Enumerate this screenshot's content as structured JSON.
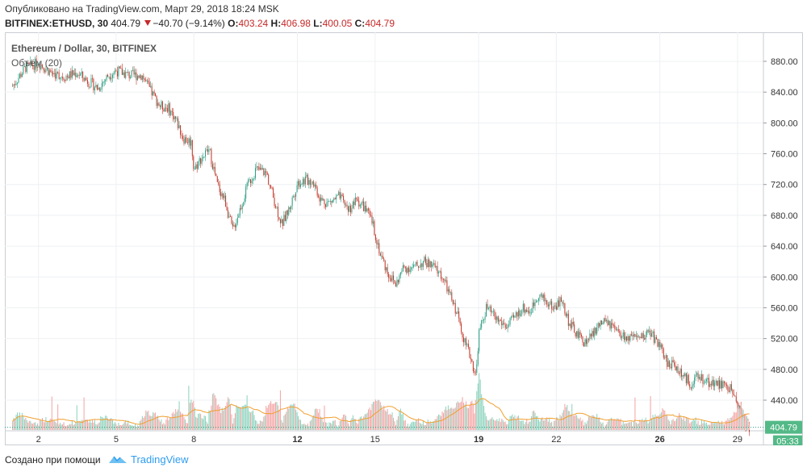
{
  "header": {
    "published": "Опубликовано на TradingView.com, Март 29, 2018 18:24 MSK",
    "symbol": "BITFINEX:ETHUSD, 30",
    "last": "404.79",
    "change": "−40.70 (−9.14%)",
    "o_label": "O:",
    "o_value": "403.24",
    "h_label": "H:",
    "h_value": "406.98",
    "l_label": "L:",
    "l_value": "400.05",
    "c_label": "C:",
    "c_value": "404.79"
  },
  "legend": {
    "title": "Ethereum / Dollar, 30, BITFINEX",
    "volume": "Объём (20)"
  },
  "footer": {
    "created_with": "Создано при помощи",
    "brand": "TradingView"
  },
  "colors": {
    "up": "#2e9e82",
    "down": "#c0392b",
    "up_volume": "#8fd3be",
    "down_volume": "#f3a6a6",
    "volume_ma": "#f0a030",
    "price_label_bg": "#53b987",
    "grid": "#eef0f3",
    "axis_text": "#333333"
  },
  "chart_data": {
    "type": "candlestick",
    "title": "Ethereum / Dollar, 30, BITFINEX",
    "ylim": [
      400,
      896
    ],
    "y_ticks": [
      "880.00",
      "840.00",
      "800.00",
      "760.00",
      "720.00",
      "680.00",
      "640.00",
      "600.00",
      "560.00",
      "520.00",
      "480.00",
      "440.00"
    ],
    "x_ticks": [
      "2",
      "5",
      "8",
      "12",
      "15",
      "19",
      "22",
      "26",
      "29"
    ],
    "last_price": "404.79",
    "countdown": "05:33",
    "price_path": [
      {
        "date": "1",
        "close": 848
      },
      {
        "date": "1.5",
        "close": 872
      },
      {
        "date": "2",
        "close": 878
      },
      {
        "date": "2.5",
        "close": 865
      },
      {
        "date": "3",
        "close": 860
      },
      {
        "date": "3.5",
        "close": 865
      },
      {
        "date": "4",
        "close": 852
      },
      {
        "date": "4.3",
        "close": 845
      },
      {
        "date": "4.7",
        "close": 862
      },
      {
        "date": "5",
        "close": 868
      },
      {
        "date": "5.5",
        "close": 862
      },
      {
        "date": "6",
        "close": 862
      },
      {
        "date": "6.3",
        "close": 843
      },
      {
        "date": "6.7",
        "close": 822
      },
      {
        "date": "7",
        "close": 820
      },
      {
        "date": "7.3",
        "close": 805
      },
      {
        "date": "7.6",
        "close": 780
      },
      {
        "date": "7.9",
        "close": 775
      },
      {
        "date": "8",
        "close": 740
      },
      {
        "date": "8.3",
        "close": 755
      },
      {
        "date": "8.6",
        "close": 765
      },
      {
        "date": "8.9",
        "close": 720
      },
      {
        "date": "9.2",
        "close": 700
      },
      {
        "date": "9.5",
        "close": 660
      },
      {
        "date": "9.8",
        "close": 690
      },
      {
        "date": "10.1",
        "close": 720
      },
      {
        "date": "10.4",
        "close": 740
      },
      {
        "date": "10.8",
        "close": 735
      },
      {
        "date": "11.1",
        "close": 700
      },
      {
        "date": "11.4",
        "close": 668
      },
      {
        "date": "11.7",
        "close": 690
      },
      {
        "date": "12",
        "close": 722
      },
      {
        "date": "12.3",
        "close": 726
      },
      {
        "date": "12.6",
        "close": 725
      },
      {
        "date": "12.9",
        "close": 700
      },
      {
        "date": "13.2",
        "close": 696
      },
      {
        "date": "13.6",
        "close": 704
      },
      {
        "date": "14",
        "close": 688
      },
      {
        "date": "14.3",
        "close": 700
      },
      {
        "date": "14.6",
        "close": 690
      },
      {
        "date": "14.9",
        "close": 670
      },
      {
        "date": "15.2",
        "close": 630
      },
      {
        "date": "15.5",
        "close": 605
      },
      {
        "date": "15.8",
        "close": 590
      },
      {
        "date": "16.1",
        "close": 612
      },
      {
        "date": "16.5",
        "close": 612
      },
      {
        "date": "16.9",
        "close": 620
      },
      {
        "date": "17.3",
        "close": 612
      },
      {
        "date": "17.6",
        "close": 600
      },
      {
        "date": "17.9",
        "close": 575
      },
      {
        "date": "18.2",
        "close": 550
      },
      {
        "date": "18.5",
        "close": 512
      },
      {
        "date": "18.7",
        "close": 495
      },
      {
        "date": "18.9",
        "close": 470
      },
      {
        "date": "19",
        "close": 525
      },
      {
        "date": "19.3",
        "close": 560
      },
      {
        "date": "19.7",
        "close": 545
      },
      {
        "date": "20.1",
        "close": 535
      },
      {
        "date": "20.4",
        "close": 548
      },
      {
        "date": "20.7",
        "close": 560
      },
      {
        "date": "21",
        "close": 555
      },
      {
        "date": "21.3",
        "close": 578
      },
      {
        "date": "21.6",
        "close": 568
      },
      {
        "date": "21.9",
        "close": 560
      },
      {
        "date": "22.2",
        "close": 570
      },
      {
        "date": "22.5",
        "close": 540
      },
      {
        "date": "22.8",
        "close": 525
      },
      {
        "date": "23.1",
        "close": 515
      },
      {
        "date": "23.4",
        "close": 525
      },
      {
        "date": "23.7",
        "close": 540
      },
      {
        "date": "24",
        "close": 540
      },
      {
        "date": "24.4",
        "close": 525
      },
      {
        "date": "24.8",
        "close": 520
      },
      {
        "date": "25.2",
        "close": 518
      },
      {
        "date": "25.6",
        "close": 530
      },
      {
        "date": "26",
        "close": 510
      },
      {
        "date": "26.3",
        "close": 488
      },
      {
        "date": "26.6",
        "close": 485
      },
      {
        "date": "26.9",
        "close": 470
      },
      {
        "date": "27.2",
        "close": 462
      },
      {
        "date": "27.5",
        "close": 470
      },
      {
        "date": "27.8",
        "close": 465
      },
      {
        "date": "28.1",
        "close": 462
      },
      {
        "date": "28.4",
        "close": 460
      },
      {
        "date": "28.7",
        "close": 455
      },
      {
        "date": "29",
        "close": 438
      },
      {
        "date": "29.3",
        "close": 408
      },
      {
        "date": "29.5",
        "close": 405
      }
    ]
  }
}
